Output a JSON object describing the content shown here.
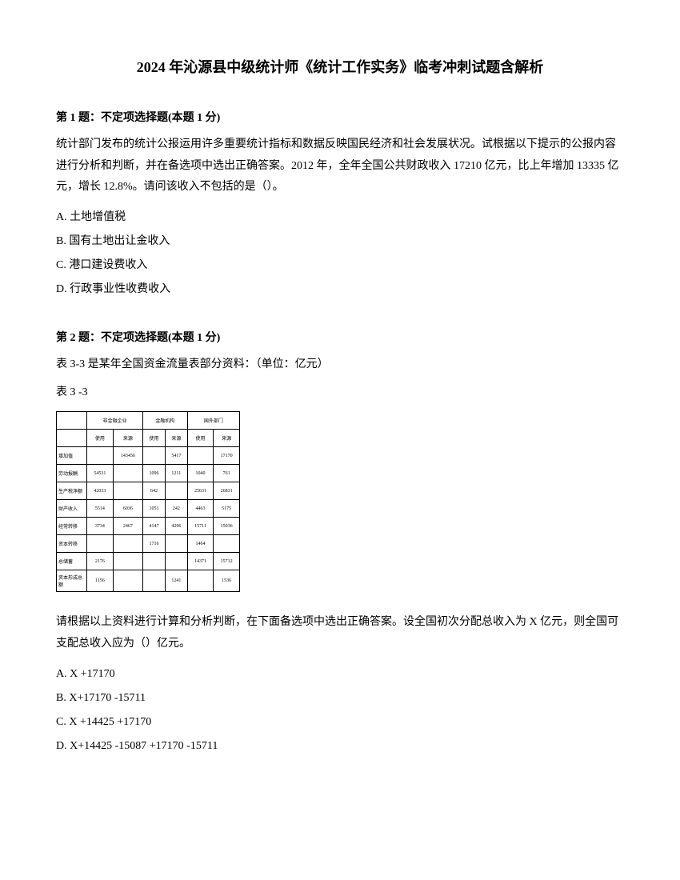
{
  "title": "2024 年沁源县中级统计师《统计工作实务》临考冲刺试题含解析",
  "q1": {
    "header": "第 1 题：不定项选择题(本题 1 分)",
    "body": "统计部门发布的统计公报运用许多重要统计指标和数据反映国民经济和社会发展状况。试根据以下提示的公报内容进行分析和判断，并在备选项中选出正确答案。2012 年，全年全国公共财政收入 17210 亿元，比上年增加 13335 亿元，增长 12.8%。请问该收入不包括的是（）。",
    "optA": "A. 土地增值税",
    "optB": "B. 国有土地出让金收入",
    "optC": "C. 港口建设费收入",
    "optD": "D. 行政事业性收费收入"
  },
  "q2": {
    "header": "第 2 题：不定项选择题(本题 1 分)",
    "intro": "表 3-3 是某年全国资金流量表部分资料：（单位：亿元）",
    "tableLabel": "表 3 -3",
    "body": "请根据以上资料进行计算和分析判断，在下面备选项中选出正确答案。设全国初次分配总收入为 X 亿元，则全国可支配总收入应为（）亿元。",
    "optA": "A. X +17170",
    "optB": "B. X+17170 -15711",
    "optC": "C. X +14425 +17170",
    "optD": "D. X+14425 -15087 +17170 -15711"
  },
  "table": {
    "headers": {
      "h1": "非金融企业",
      "h2": "金融机构",
      "h3": "",
      "h4": "国外部门"
    },
    "subheaders": {
      "s1": "使用",
      "s2": "来源",
      "s3": "使用",
      "s4": "来源",
      "s5": "使用",
      "s6": "来源"
    },
    "rows": [
      {
        "label": "增加值",
        "c1": "",
        "c2": "143456",
        "c3": "",
        "c4": "5417",
        "c5": "",
        "c6": "17170"
      },
      {
        "label": "劳动报酬",
        "c1": "54531",
        "c2": "",
        "c3": "1096",
        "c4": "1211",
        "c5": "1040",
        "c6": "761"
      },
      {
        "label": "生产税净额",
        "c1": "42033",
        "c2": "",
        "c3": "642",
        "c4": "",
        "c5": "25631",
        "c6": "26831"
      },
      {
        "label": "财产收入",
        "c1": "5514",
        "c2": "6036",
        "c3": "1051",
        "c4": "242",
        "c5": "4463",
        "c6": "5175"
      },
      {
        "label": "经常转移",
        "c1": "3734",
        "c2": "2467",
        "c3": "4147",
        "c4": "4296",
        "c5": "15711",
        "c6": "15036"
      },
      {
        "label": "资本转移",
        "c1": "",
        "c2": "",
        "c3": "1716",
        "c4": "",
        "c5": "1464",
        "c6": ""
      },
      {
        "label": "总储蓄",
        "c1": "2176",
        "c2": "",
        "c3": "",
        "c4": "",
        "c5": "14371",
        "c6": "15712"
      },
      {
        "label": "资本形成总额",
        "c1": "1156",
        "c2": "",
        "c3": "",
        "c4": "1241",
        "c5": "",
        "c6": "1536"
      }
    ]
  }
}
